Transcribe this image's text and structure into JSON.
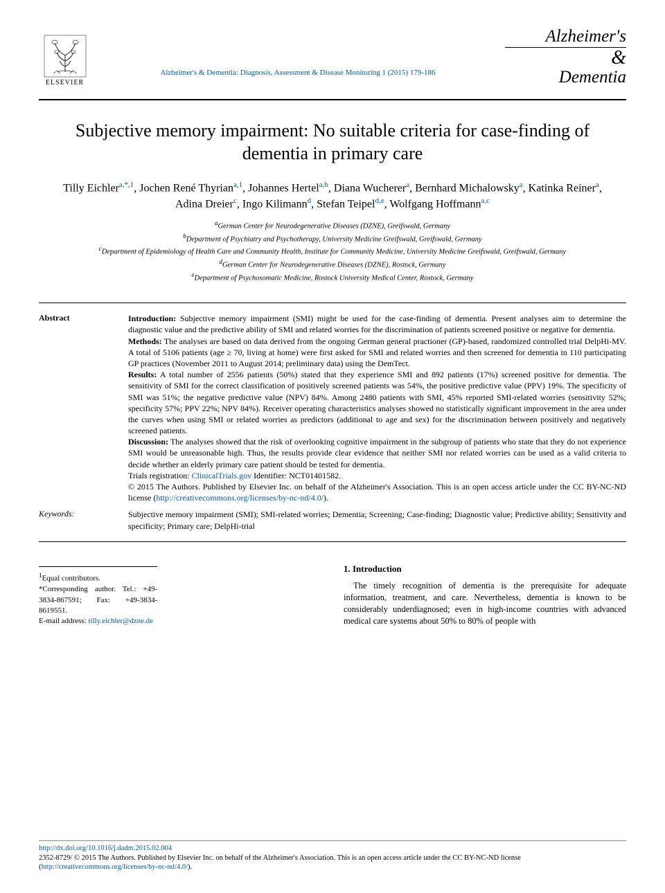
{
  "header": {
    "publisher_name": "ELSEVIER",
    "journal_ref": "Alzheimer's & Dementia: Diagnosis, Assessment & Disease Monitoring 1 (2015) 179-186",
    "journal_logo_line1": "Alzheimer's",
    "journal_logo_amp": "&",
    "journal_logo_line2": "Dementia"
  },
  "title": "Subjective memory impairment: No suitable criteria for case-finding of dementia in primary care",
  "authors_html": "Tilly Eichler<sup class='sup'>a,*,1</sup>, Jochen René Thyrian<sup class='sup'>a,1</sup>, Johannes Hertel<sup class='sup'>a,b</sup>, Diana Wucherer<sup class='sup'>a</sup>, Bernhard Michalowsky<sup class='sup'>a</sup>, Katinka Reiner<sup class='sup'>a</sup>, Adina Dreier<sup class='sup'>c</sup>, Ingo Kilimann<sup class='sup'>d</sup>, Stefan Teipel<sup class='sup'>d,e</sup>, Wolfgang Hoffmann<sup class='sup'>a,c</sup>",
  "affiliations": [
    {
      "sup": "a",
      "text": "German Center for Neurodegenerative Diseases (DZNE), Greifswald, Germany"
    },
    {
      "sup": "b",
      "text": "Department of Psychiatry and Psychotherapy, University Medicine Greifswald, Greifswald, Germany"
    },
    {
      "sup": "c",
      "text": "Department of Epidemiology of Health Care and Community Health, Institute for Community Medicine, University Medicine Greifswald, Greifswald, Germany"
    },
    {
      "sup": "d",
      "text": "German Center for Neurodegenerative Diseases (DZNE), Rostock, Germany"
    },
    {
      "sup": "e",
      "text": "Department of Psychosomatic Medicine, Rostock University Medical Center, Rostock, Germany"
    }
  ],
  "abstract": {
    "label": "Abstract",
    "intro_label": "Introduction:",
    "intro": " Subjective memory impairment (SMI) might be used for the case-finding of dementia. Present analyses aim to determine the diagnostic value and the predictive ability of SMI and related worries for the discrimination of patients screened positive or negative for dementia.",
    "methods_label": "Methods:",
    "methods": " The analyses are based on data derived from the ongoing German general practioner (GP)-based, randomized controlled trial DelpHi-MV. A total of 5106 patients (age ≥ 70, living at home) were first asked for SMI and related worries and then screened for dementia in 110 participating GP practices (November 2011 to August 2014; preliminary data) using the DemTect.",
    "results_label": "Results:",
    "results": " A total number of 2556 patients (50%) stated that they experience SMI and 892 patients (17%) screened positive for dementia. The sensitivity of SMI for the correct classification of positively screened patients was 54%, the positive predictive value (PPV) 19%. The specificity of SMI was 51%; the negative predictive value (NPV) 84%. Among 2480 patients with SMI, 45% reported SMI-related worries (sensitivity 52%; specificity 57%; PPV 22%; NPV 84%). Receiver operating characteristics analyses showed no statistically significant improvement in the area under the curves when using SMI or related worries as predictors (additional to age and sex) for the discrimination between positively and negatively screened patients.",
    "discussion_label": "Discussion:",
    "discussion": " The analyses showed that the risk of overlooking cognitive impairment in the subgroup of patients who state that they do not experience SMI would be unreasonable high. Thus, the results provide clear evidence that neither SMI nor related worries can be used as a valid criteria to decide whether an elderly primary care patient should be tested for dementia.",
    "trials_label": "Trials registration: ",
    "trials_link": "ClinicalTrials.gov",
    "trials_suffix": " Identifier: NCT01401582.",
    "copyright": "© 2015 The Authors. Published by Elsevier Inc. on behalf of the Alzheimer's Association. This is an open access article under the CC BY-NC-ND license (",
    "cc_link": "http://creativecommons.org/licenses/by-nc-nd/4.0/",
    "copyright_suffix": ")."
  },
  "keywords": {
    "label": "Keywords:",
    "text": "Subjective memory impairment (SMI); SMI-related worries; Dementia; Screening; Case-finding; Diagnostic value; Predictive ability; Sensitivity and specificity; Primary care; DelpHi-trial"
  },
  "footnotes": {
    "equal": "Equal contributors.",
    "equal_sup": "1",
    "corr_sup": "*",
    "corr": "Corresponding author. Tel.: +49-3834-867591; Fax: +49-3834-8619551.",
    "email_label": "E-mail address: ",
    "email": "tilly.eichler@dzne.de"
  },
  "intro_section": {
    "heading": "1. Introduction",
    "text": "The timely recognition of dementia is the prerequisite for adequate information, treatment, and care. Nevertheless, dementia is known to be considerably underdiagnosed; even in high-income countries with advanced medical care systems about 50% to 80% of people with"
  },
  "bottom": {
    "doi": "http://dx.doi.org/10.1016/j.dadm.2015.02.004",
    "issn": "2352-8729/ © 2015 The Authors. Published by Elsevier Inc. on behalf of the Alzheimer's Association. This is an open access article under the CC BY-NC-ND license (",
    "cc_link": "http://creativecommons.org/licenses/by-nc-nd/4.0/",
    "issn_suffix": ")."
  },
  "colors": {
    "link": "#0058a5",
    "text": "#000000",
    "background": "#ffffff"
  }
}
